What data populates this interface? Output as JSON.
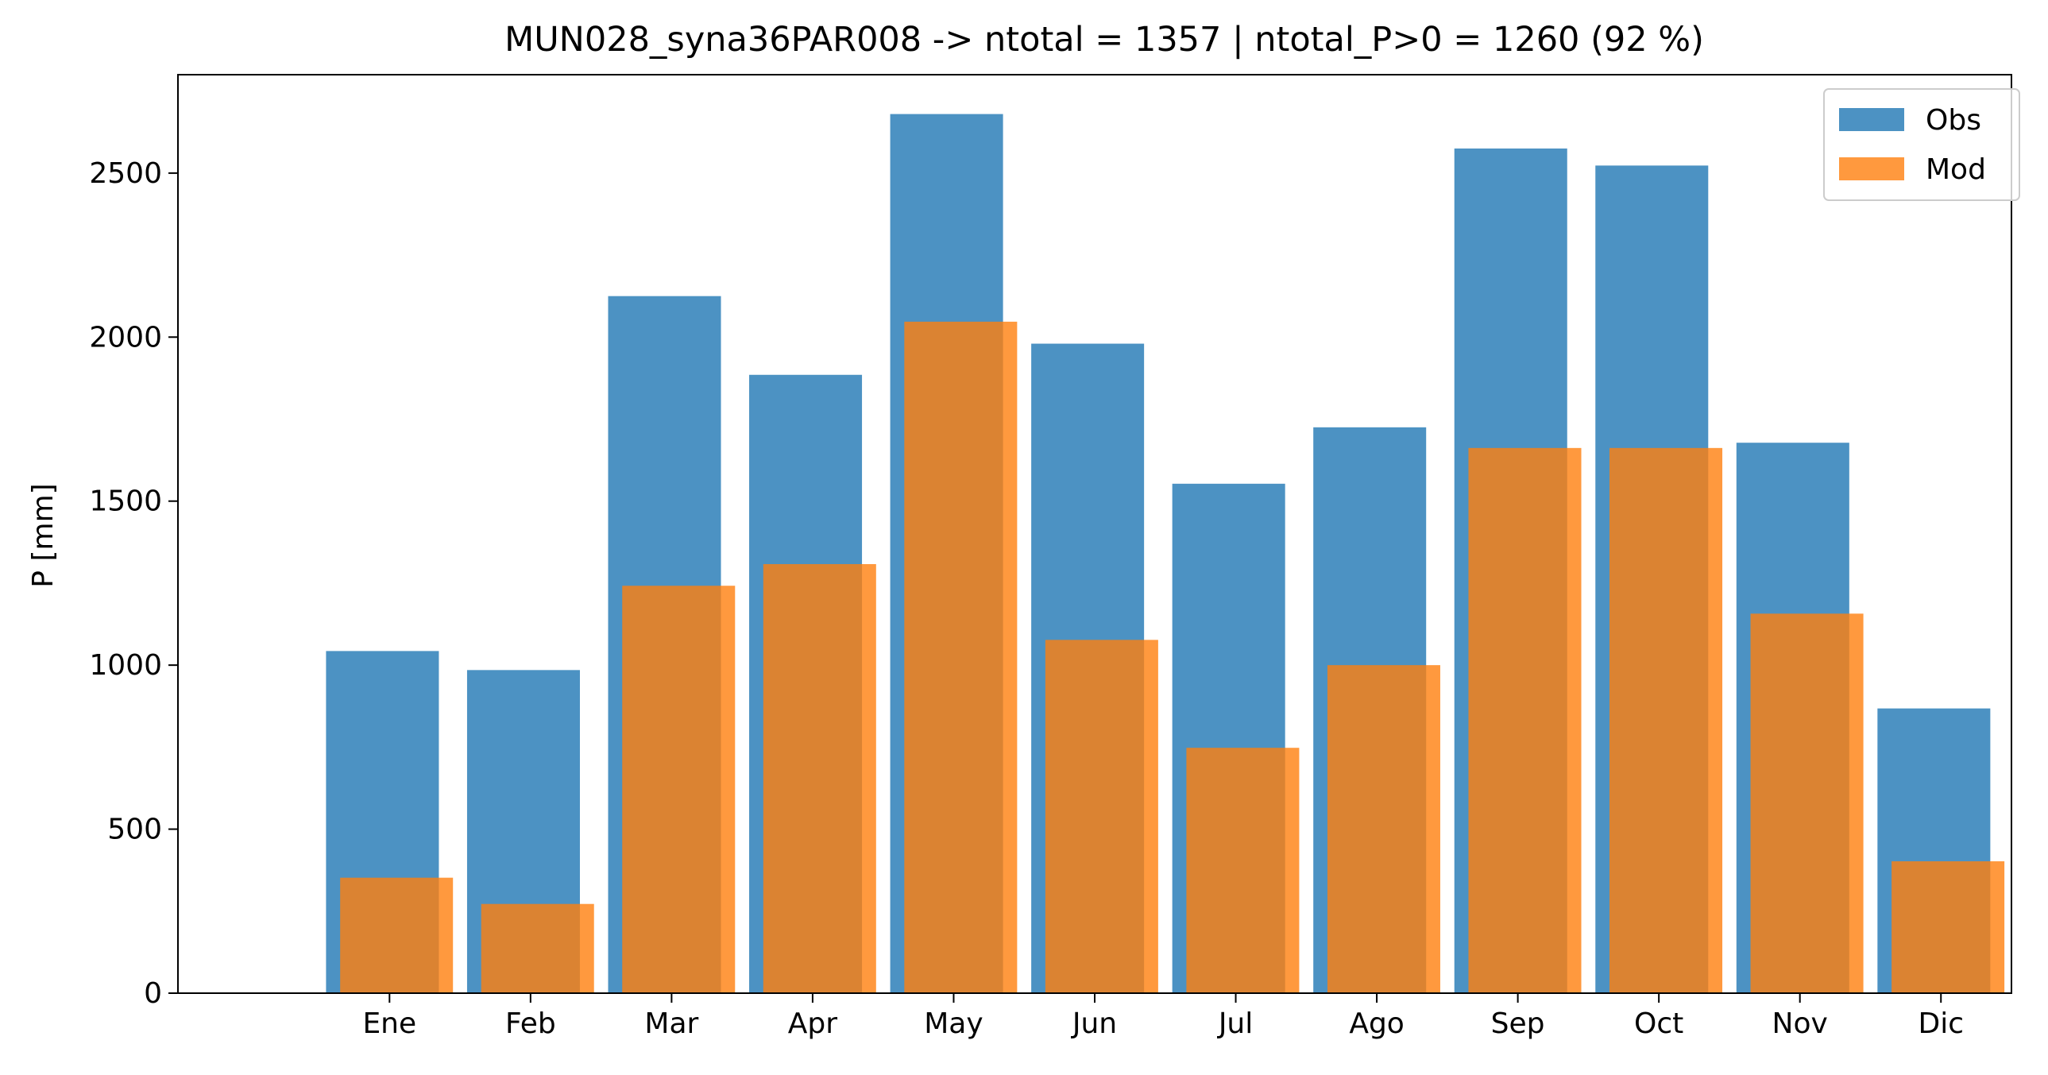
{
  "chart_data": {
    "type": "bar",
    "title": "MUN028_syna36PAR008 -> ntotal = 1357 | ntotal_P>0 = 1260 (92 %)",
    "xlabel": "",
    "ylabel": "P [mm]",
    "ylim": [
      0,
      2800
    ],
    "yticks": [
      0,
      500,
      1000,
      1500,
      2000,
      2500
    ],
    "categories": [
      "Ene",
      "Feb",
      "Mar",
      "Apr",
      "May",
      "Jun",
      "Jul",
      "Ago",
      "Sep",
      "Oct",
      "Nov",
      "Dic"
    ],
    "series": [
      {
        "name": "Obs",
        "color": "#1f77b4",
        "opacity": 0.8,
        "values": [
          1043,
          985,
          2125,
          1885,
          2680,
          1980,
          1553,
          1725,
          2575,
          2523,
          1678,
          868
        ]
      },
      {
        "name": "Mod",
        "color": "#ff7f0e",
        "opacity": 0.8,
        "values": [
          352,
          272,
          1242,
          1308,
          2047,
          1077,
          748,
          1000,
          1662,
          1662,
          1157,
          402
        ]
      }
    ],
    "grid": false,
    "legend_position": "top-right"
  }
}
